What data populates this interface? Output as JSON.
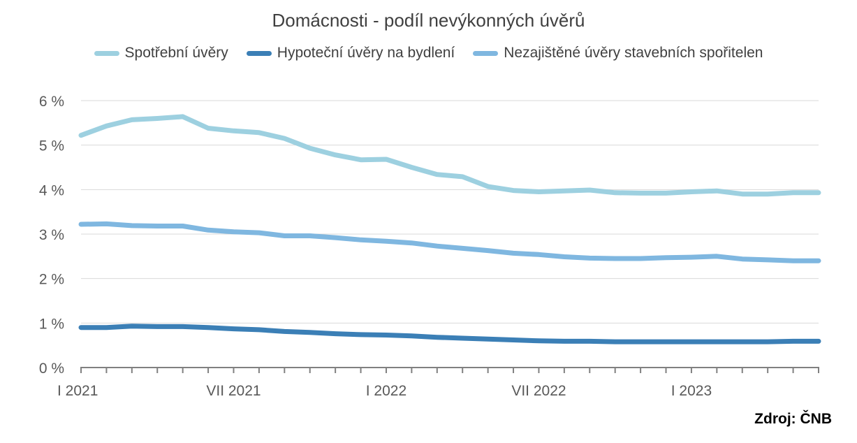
{
  "chart_data": {
    "type": "line",
    "title": "Domácnosti - podíl nevýkonných úvěrů",
    "source": "Zdroj: ČNB",
    "xlabel": "",
    "ylabel": "",
    "ylim": [
      0,
      6
    ],
    "yticks": [
      "0 %",
      "1 %",
      "2 %",
      "3 %",
      "4 %",
      "5 %",
      "6 %"
    ],
    "grid": true,
    "legend_position": "top",
    "x_labels": [
      {
        "index": 0,
        "label": "I 2021"
      },
      {
        "index": 6,
        "label": "VII 2021"
      },
      {
        "index": 12,
        "label": "I 2022"
      },
      {
        "index": 18,
        "label": "VII 2022"
      },
      {
        "index": 24,
        "label": "I 2023"
      }
    ],
    "x": [
      "2021-01",
      "2021-02",
      "2021-03",
      "2021-04",
      "2021-05",
      "2021-06",
      "2021-07",
      "2021-08",
      "2021-09",
      "2021-10",
      "2021-11",
      "2021-12",
      "2022-01",
      "2022-02",
      "2022-03",
      "2022-04",
      "2022-05",
      "2022-06",
      "2022-07",
      "2022-08",
      "2022-09",
      "2022-10",
      "2022-11",
      "2022-12",
      "2023-01",
      "2023-02",
      "2023-03",
      "2023-04",
      "2023-05",
      "2023-06"
    ],
    "series": [
      {
        "name": "Spotřební úvěry",
        "color": "#9dd0e0",
        "values": [
          5.22,
          5.43,
          5.57,
          5.6,
          5.64,
          5.38,
          5.32,
          5.28,
          5.15,
          4.93,
          4.78,
          4.67,
          4.68,
          4.5,
          4.34,
          4.29,
          4.07,
          3.98,
          3.95,
          3.97,
          3.99,
          3.93,
          3.92,
          3.92,
          3.95,
          3.97,
          3.9,
          3.9,
          3.93,
          3.93
        ]
      },
      {
        "name": "Hypoteční úvěry na bydlení",
        "color": "#3b7fb6",
        "values": [
          0.9,
          0.9,
          0.93,
          0.92,
          0.92,
          0.9,
          0.87,
          0.85,
          0.81,
          0.79,
          0.76,
          0.74,
          0.73,
          0.71,
          0.68,
          0.66,
          0.64,
          0.62,
          0.6,
          0.59,
          0.59,
          0.58,
          0.58,
          0.58,
          0.58,
          0.58,
          0.58,
          0.58,
          0.59,
          0.59
        ]
      },
      {
        "name": "Nezajištěné úvěry stavebních spořitelen",
        "color": "#7fb7e0",
        "values": [
          3.22,
          3.23,
          3.19,
          3.18,
          3.18,
          3.09,
          3.05,
          3.03,
          2.96,
          2.96,
          2.92,
          2.87,
          2.84,
          2.8,
          2.73,
          2.68,
          2.63,
          2.57,
          2.54,
          2.49,
          2.46,
          2.45,
          2.45,
          2.47,
          2.48,
          2.5,
          2.44,
          2.42,
          2.4,
          2.4
        ]
      }
    ]
  }
}
